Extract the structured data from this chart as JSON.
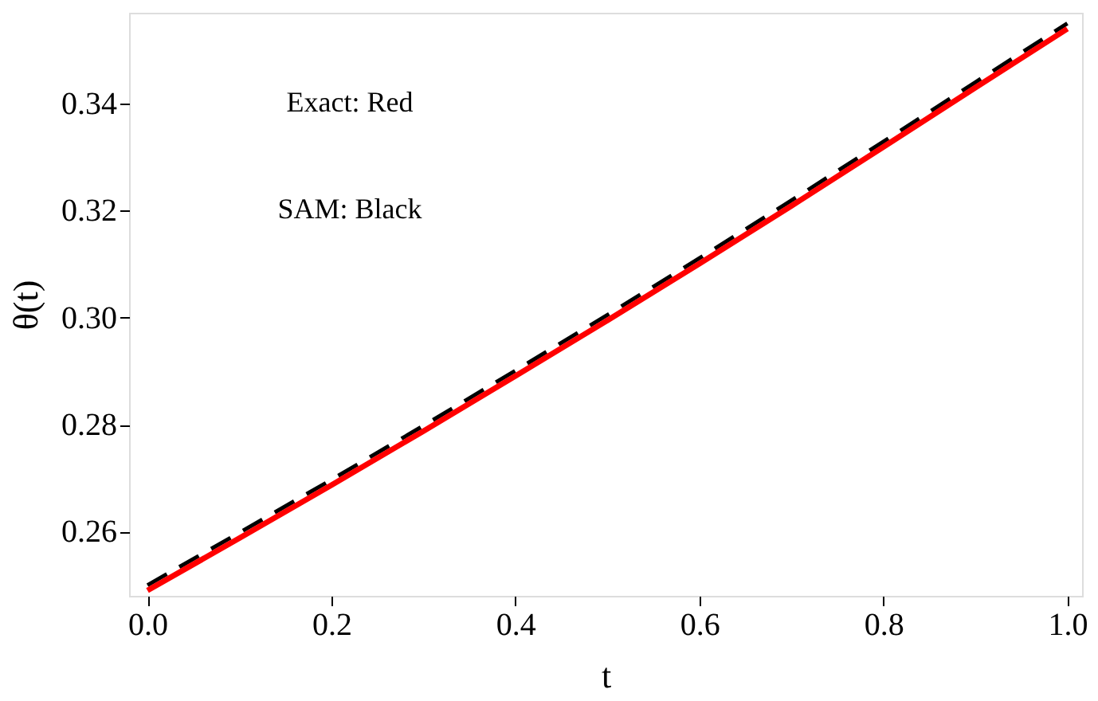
{
  "chart_data": {
    "type": "line",
    "xlabel": "t",
    "ylabel": "θ(t)",
    "x": [
      0,
      0.1,
      0.2,
      0.3,
      0.4,
      0.5,
      0.6,
      0.7,
      0.8,
      0.9,
      1.0
    ],
    "series": [
      {
        "color": "#000000",
        "line_style": "dashed",
        "values": [
          0.25,
          0.2598,
          0.2697,
          0.2798,
          0.2901,
          0.3005,
          0.3111,
          0.3219,
          0.3329,
          0.344,
          0.355
        ]
      },
      {
        "color": "#ff0000",
        "line_style": "solid",
        "values": [
          0.249,
          0.2588,
          0.2687,
          0.2788,
          0.2891,
          0.2995,
          0.3101,
          0.3209,
          0.3319,
          0.343,
          0.354
        ]
      }
    ],
    "xlim": [
      -0.02,
      1.016
    ],
    "xticks": [
      {
        "value": 0,
        "label": "0.0"
      },
      0.2,
      0.4,
      0.6,
      0.8,
      {
        "value": 1,
        "label": "1.0"
      }
    ],
    "ylim": [
      0.248,
      0.357
    ],
    "yticks": [
      0.26,
      0.28,
      {
        "value": 0.3,
        "label": "0.30"
      },
      0.32,
      0.34
    ],
    "grid": false,
    "marker": "none",
    "annotations": [
      "Exact: Red",
      "SAM:  Black"
    ]
  }
}
